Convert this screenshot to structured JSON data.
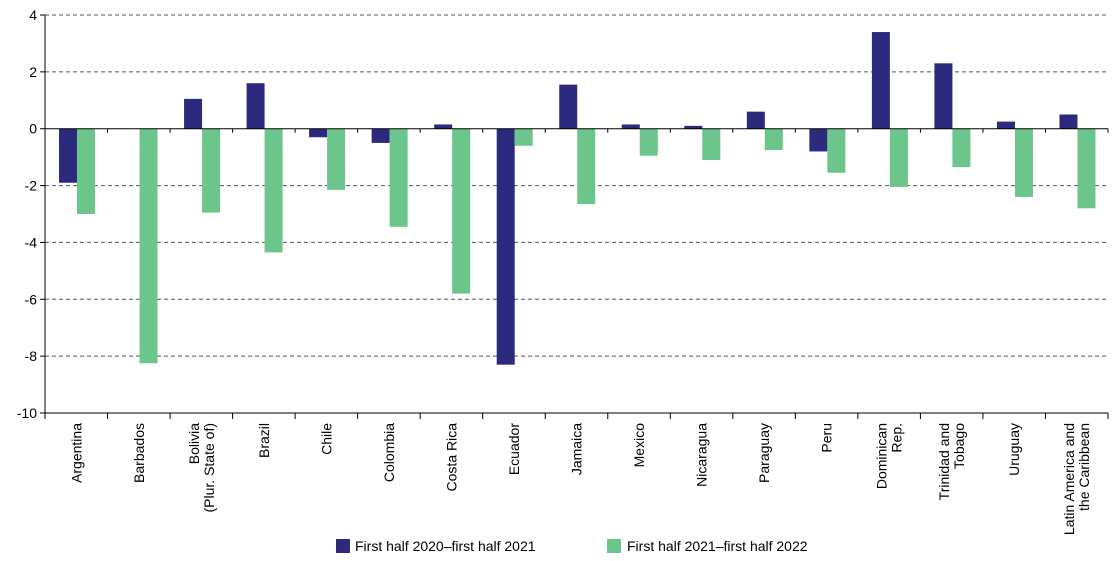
{
  "chart_data": {
    "type": "bar",
    "categories": [
      [
        "Argentina"
      ],
      [
        "Barbados"
      ],
      [
        "Bolivia",
        "(Plur. State of)"
      ],
      [
        "Brazil"
      ],
      [
        "Chile"
      ],
      [
        "Colombia"
      ],
      [
        "Costa Rica"
      ],
      [
        "Ecuador"
      ],
      [
        "Jamaica"
      ],
      [
        "Mexico"
      ],
      [
        "Nicaragua"
      ],
      [
        "Paraguay"
      ],
      [
        "Peru"
      ],
      [
        "Dominican",
        "Rep."
      ],
      [
        "Trinidad and",
        "Tobago"
      ],
      [
        "Uruguay"
      ],
      [
        "Latin America and",
        "the Caribbean"
      ]
    ],
    "series": [
      {
        "name": "First half 2020–first half 2021",
        "color": "#2b2a7c",
        "values": [
          -1.9,
          0.0,
          1.05,
          1.6,
          -0.3,
          -0.5,
          0.15,
          -8.3,
          1.55,
          0.15,
          0.1,
          0.6,
          -0.8,
          3.4,
          2.3,
          0.25,
          0.5
        ]
      },
      {
        "name": "First half 2021–first half 2022",
        "color": "#6cc58a",
        "values": [
          -3.0,
          -8.25,
          -2.95,
          -4.35,
          -2.15,
          -3.45,
          -5.8,
          -0.6,
          -2.65,
          -0.95,
          -1.1,
          -0.75,
          -1.55,
          -2.05,
          -1.35,
          -2.4,
          -2.8
        ]
      }
    ],
    "ylim": [
      -10,
      4
    ],
    "yticks": [
      4,
      2,
      0,
      -2,
      -4,
      -6,
      -8,
      -10
    ],
    "grid": true,
    "legend_position": "bottom-center"
  }
}
